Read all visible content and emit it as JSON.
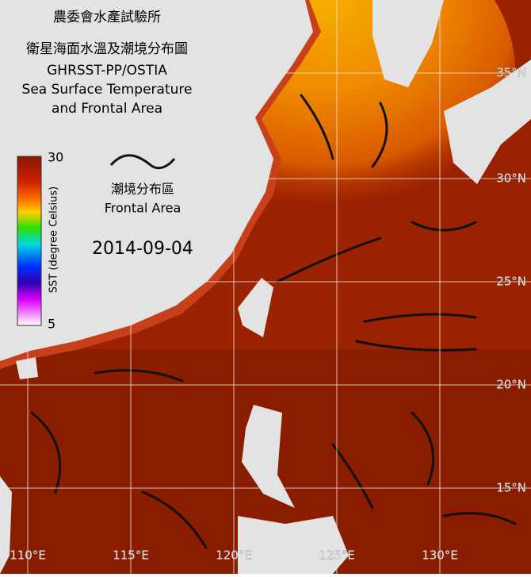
{
  "title": [
    "農委會水產試驗所",
    "衛星海面水溫及潮境分布圖",
    "GHRSST-PP/OSTIA",
    "Sea Surface Temperature",
    "and Frontal Area"
  ],
  "legend": {
    "colorbar_label": "SST (degree Celsius)",
    "max": "30",
    "min": "5",
    "front_label_zh": "潮境分布區",
    "front_label_en": "Frontal Area"
  },
  "date": "2014-09-04",
  "lat_labels": [
    "35°N",
    "30°N",
    "25°N",
    "20°N",
    "15°N"
  ],
  "lon_labels": [
    "110°E",
    "115°E",
    "120°E",
    "125°E",
    "130°E"
  ]
}
